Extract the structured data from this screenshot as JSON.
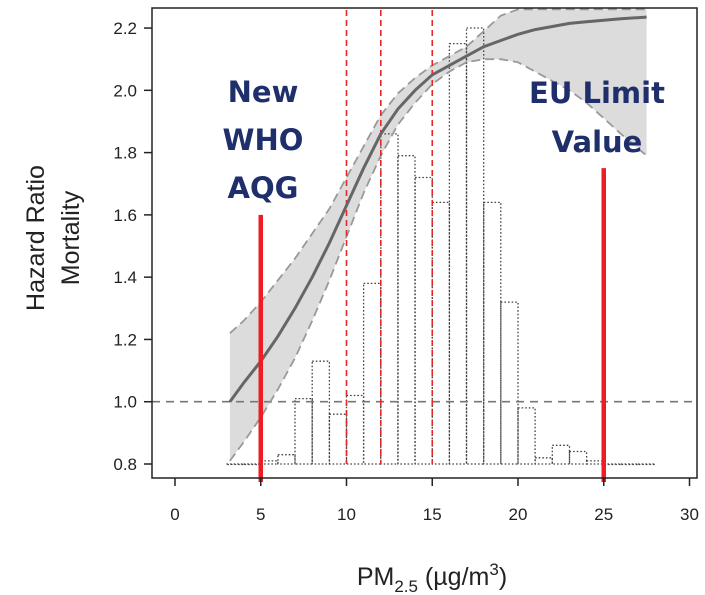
{
  "chart_data": {
    "type": "line",
    "xlabel_main": "PM",
    "xlabel_sub": "2.5",
    "xlabel_unit": " (µg/m",
    "xlabel_sup": "3",
    "xlabel_close": ")",
    "ylabel_line1": "Hazard Ratio",
    "ylabel_line2": "Mortality",
    "xlim": [
      0,
      30
    ],
    "ylim": [
      0.8,
      2.2
    ],
    "x_ticks": [
      "0",
      "5",
      "10",
      "15",
      "20",
      "25",
      "30"
    ],
    "y_ticks": [
      "0.8",
      "1.0",
      "1.2",
      "1.4",
      "1.6",
      "1.8",
      "2.0",
      "2.2"
    ],
    "reference_line": 1.0,
    "series": [
      {
        "x": [
          3.2,
          4,
          5,
          6,
          7,
          8,
          9,
          10,
          11,
          12,
          13,
          14,
          15,
          16,
          17,
          18,
          19,
          20,
          21,
          22,
          23,
          24,
          25,
          26,
          27.5
        ],
        "y": [
          1.0,
          1.06,
          1.13,
          1.21,
          1.3,
          1.4,
          1.51,
          1.63,
          1.75,
          1.86,
          1.94,
          2.0,
          2.05,
          2.08,
          2.11,
          2.14,
          2.16,
          2.18,
          2.195,
          2.205,
          2.215,
          2.22,
          2.225,
          2.23,
          2.235
        ],
        "lower": [
          0.81,
          0.87,
          0.95,
          1.04,
          1.14,
          1.26,
          1.39,
          1.53,
          1.67,
          1.79,
          1.89,
          1.96,
          2.02,
          2.06,
          2.09,
          2.1,
          2.1,
          2.09,
          2.06,
          2.03,
          2.0,
          1.96,
          1.91,
          1.86,
          1.79
        ],
        "upper": [
          1.22,
          1.26,
          1.32,
          1.39,
          1.46,
          1.54,
          1.62,
          1.72,
          1.82,
          1.92,
          1.99,
          2.04,
          2.08,
          2.11,
          2.14,
          2.19,
          2.24,
          2.26,
          2.26,
          2.26,
          2.26,
          2.26,
          2.26,
          2.26,
          2.26
        ]
      }
    ],
    "histogram": {
      "bin_width": 1,
      "bins": [
        {
          "x0": 3,
          "y": 0.8
        },
        {
          "x0": 4,
          "y": 0.8
        },
        {
          "x0": 5,
          "y": 0.81
        },
        {
          "x0": 6,
          "y": 0.83
        },
        {
          "x0": 7,
          "y": 1.01
        },
        {
          "x0": 8,
          "y": 1.13
        },
        {
          "x0": 9,
          "y": 0.96
        },
        {
          "x0": 10,
          "y": 1.02
        },
        {
          "x0": 11,
          "y": 1.38
        },
        {
          "x0": 12,
          "y": 1.86
        },
        {
          "x0": 13,
          "y": 1.79
        },
        {
          "x0": 14,
          "y": 1.72
        },
        {
          "x0": 15,
          "y": 1.64
        },
        {
          "x0": 16,
          "y": 2.15
        },
        {
          "x0": 17,
          "y": 2.2
        },
        {
          "x0": 18,
          "y": 1.64
        },
        {
          "x0": 19,
          "y": 1.32
        },
        {
          "x0": 20,
          "y": 0.98
        },
        {
          "x0": 21,
          "y": 0.82
        },
        {
          "x0": 22,
          "y": 0.86
        },
        {
          "x0": 23,
          "y": 0.84
        },
        {
          "x0": 24,
          "y": 0.81
        },
        {
          "x0": 25,
          "y": 0.8
        },
        {
          "x0": 26,
          "y": 0.8
        },
        {
          "x0": 27,
          "y": 0.8
        }
      ]
    },
    "dashed_verticals": [
      10,
      12,
      15
    ],
    "markers": [
      {
        "x": 5,
        "y_top": 1.6,
        "label_lines": [
          "New",
          "WHO",
          "AQG"
        ]
      },
      {
        "x": 25,
        "y_top": 1.75,
        "label_lines": [
          "EU Limit",
          "Value"
        ]
      }
    ],
    "colors": {
      "line": "#666666",
      "ci_fill": "#dcdcdc",
      "ci_border": "#999999",
      "histogram": "#444444",
      "dashed_red": "#e8262a",
      "marker_red": "#ee1c24",
      "annotation_text": "#1f2f6b",
      "reference": "#777777",
      "axis": "#222222"
    },
    "grid": false
  }
}
